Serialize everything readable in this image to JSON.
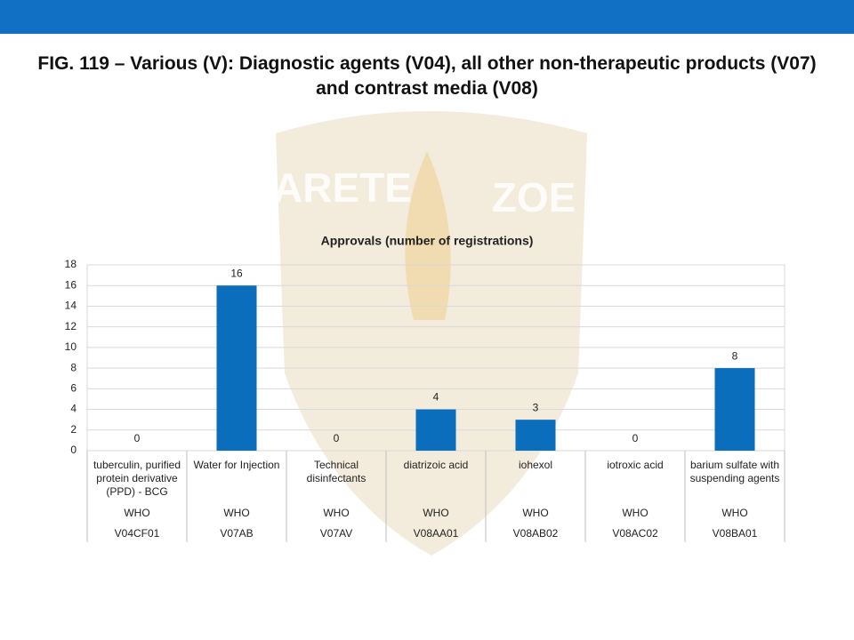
{
  "slide_title": "FIG. 119 – Various (V): Diagnostic agents (V04), all other non-therapeutic products (V07) and contrast media (V08)",
  "watermark": [
    "ARETE",
    "ZOE"
  ],
  "chart_data": {
    "type": "bar",
    "title": "Approvals (number of registrations)",
    "categories": [
      "tuberculin, purified protein derivative (PPD) - BCG",
      "Water for Injection",
      "Technical disinfectants",
      "diatrizoic acid",
      "iohexol",
      "iotroxic acid",
      "barium sulfate with suspending agents"
    ],
    "category_rows": [
      [
        "WHO",
        "WHO",
        "WHO",
        "WHO",
        "WHO",
        "WHO",
        "WHO"
      ],
      [
        "V04CF01",
        "V07AB",
        "V07AV",
        "V08AA01",
        "V08AB02",
        "V08AC02",
        "V08BA01"
      ]
    ],
    "values": [
      0,
      16,
      0,
      4,
      3,
      0,
      8
    ],
    "color": "#0a6ebd",
    "ylim": [
      0,
      18
    ],
    "yticks": [
      0,
      2,
      4,
      6,
      8,
      10,
      12,
      14,
      16,
      18
    ],
    "grid": true
  }
}
